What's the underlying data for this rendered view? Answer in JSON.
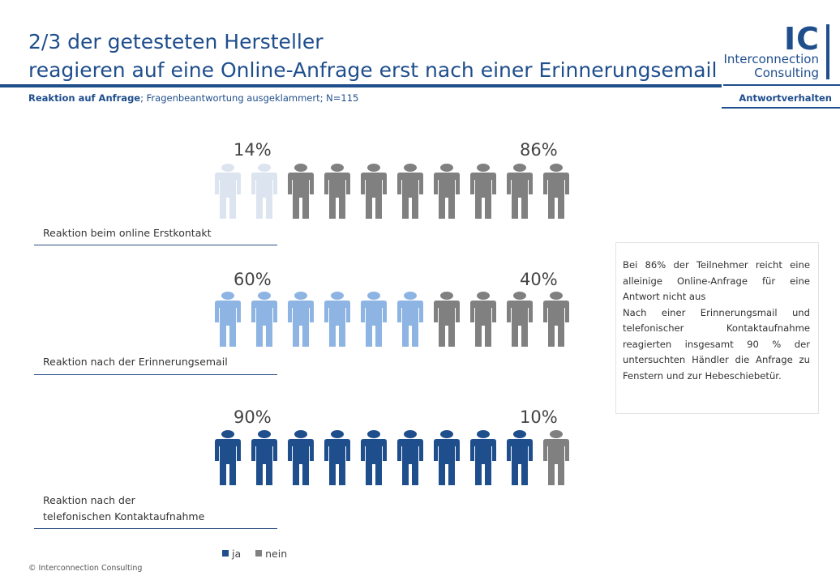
{
  "header": {
    "title_line1": "2/3 der getesteten Hersteller",
    "title_line2": "reagieren auf eine Online-Anfrage erst nach einer Erinnerungsemail",
    "subtitle_bold": "Reaktion auf Anfrage",
    "subtitle_rest": "; Fragenbeantwortung ausgeklammert; N=115",
    "section_tag": "Antwortverhalten"
  },
  "logo": {
    "mark": "IC",
    "line1": "Interconnection",
    "line2": "Consulting"
  },
  "colors": {
    "nein": "#808080",
    "brand": "#1f4e8c"
  },
  "chart_data": {
    "type": "pictogram",
    "icons_per_row": 10,
    "series_names": [
      "ja",
      "nein"
    ],
    "rows": [
      {
        "label": "Reaktion beim online Erstkontakt",
        "ja_label": "14%",
        "nein_label": "86%",
        "ja": 14,
        "nein": 86,
        "ja_icons": 2,
        "ja_color": "#dce5ef"
      },
      {
        "label": "Reaktion nach der Erinnerungsemail",
        "ja_label": "60%",
        "nein_label": "40%",
        "ja": 60,
        "nein": 40,
        "ja_icons": 6,
        "ja_color": "#8db4e2"
      },
      {
        "label_line1": "Reaktion nach der",
        "label_line2": "telefonischen Kontaktaufnahme",
        "ja_label": "90%",
        "nein_label": "10%",
        "ja": 90,
        "nein": 10,
        "ja_icons": 9,
        "ja_color": "#1f4e8c"
      }
    ],
    "legend": [
      {
        "label": "ja",
        "color": "#1f4e8c"
      },
      {
        "label": "nein",
        "color": "#808080"
      }
    ]
  },
  "note": {
    "p1": "Bei 86% der Teilnehmer reicht eine alleinige Online-Anfrage für eine Antwort nicht aus",
    "p2": "Nach einer Erinnerungsmail und telefonischer Kontaktaufnahme reagierten insgesamt 90 % der untersuchten Händler die Anfrage zu Fenstern und zur Hebeschiebetür."
  },
  "footer": {
    "copyright": "© Interconnection Consulting"
  }
}
